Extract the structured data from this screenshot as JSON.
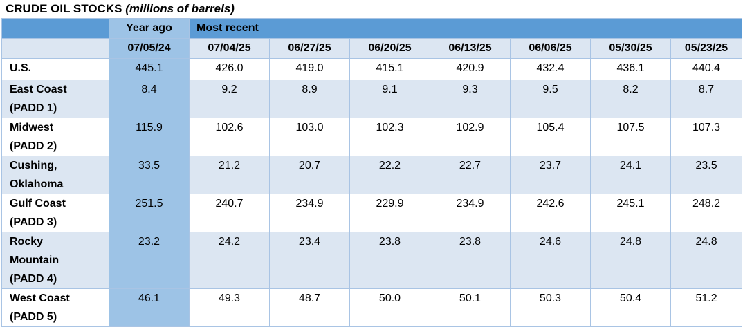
{
  "title": {
    "main": "CRUDE OIL STOCKS",
    "sub": "(millions of barrels)"
  },
  "headers": {
    "year_ago": "Year ago",
    "most_recent": "Most recent",
    "dates": [
      "07/05/24",
      "07/04/25",
      "06/27/25",
      "06/20/25",
      "06/13/25",
      "06/06/25",
      "05/30/25",
      "05/23/25"
    ]
  },
  "rows": [
    {
      "name": [
        "U.S."
      ],
      "values": [
        "445.1",
        "426.0",
        "419.0",
        "415.1",
        "420.9",
        "432.4",
        "436.1",
        "440.4"
      ]
    },
    {
      "name": [
        "East Coast",
        "(PADD 1)"
      ],
      "values": [
        "8.4",
        "9.2",
        "8.9",
        "9.1",
        "9.3",
        "9.5",
        "8.2",
        "8.7"
      ]
    },
    {
      "name": [
        "Midwest",
        "(PADD 2)"
      ],
      "values": [
        "115.9",
        "102.6",
        "103.0",
        "102.3",
        "102.9",
        "105.4",
        "107.5",
        "107.3"
      ]
    },
    {
      "name": [
        "Cushing,",
        "Oklahoma"
      ],
      "values": [
        "33.5",
        "21.2",
        "20.7",
        "22.2",
        "22.7",
        "23.7",
        "24.1",
        "23.5"
      ]
    },
    {
      "name": [
        "Gulf Coast",
        "(PADD 3)"
      ],
      "values": [
        "251.5",
        "240.7",
        "234.9",
        "229.9",
        "234.9",
        "242.6",
        "245.1",
        "248.2"
      ]
    },
    {
      "name": [
        "Rocky",
        "Mountain",
        "(PADD 4)"
      ],
      "values": [
        "23.2",
        "24.2",
        "23.4",
        "23.8",
        "23.8",
        "24.6",
        "24.8",
        "24.8"
      ]
    },
    {
      "name": [
        "West Coast",
        "(PADD 5)"
      ],
      "values": [
        "46.1",
        "49.3",
        "48.7",
        "50.0",
        "50.1",
        "50.3",
        "50.4",
        "51.2"
      ]
    }
  ]
}
